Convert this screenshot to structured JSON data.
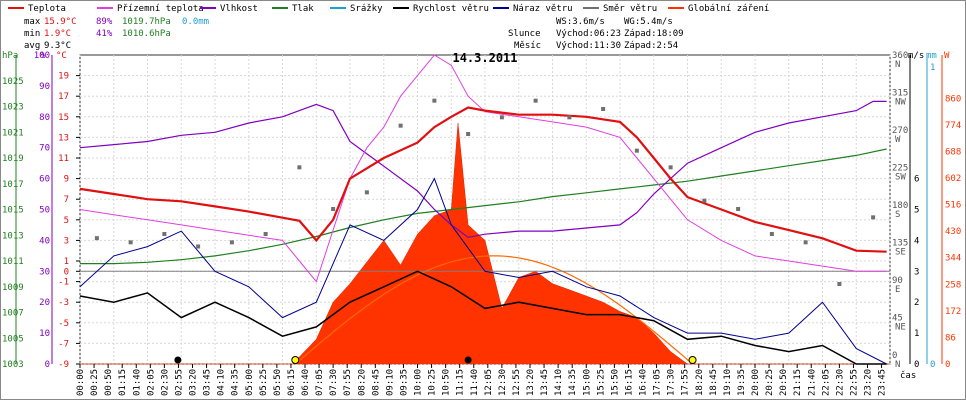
{
  "legend": [
    {
      "label": "Teplota",
      "color": "#e01010"
    },
    {
      "label": "Přízemní teplota",
      "color": "#e040e0"
    },
    {
      "label": "Vlhkost",
      "color": "#8000c0"
    },
    {
      "label": "Tlak",
      "color": "#208020"
    },
    {
      "label": "Srážky",
      "color": "#20a0d0"
    },
    {
      "label": "Rychlost větru",
      "color": "#000000"
    },
    {
      "label": "Náraz větru",
      "color": "#000090"
    },
    {
      "label": "Směr větru",
      "color": "#707070"
    },
    {
      "label": "Globální záření",
      "color": "#ff3300"
    }
  ],
  "stats": {
    "max_label": "max",
    "min_label": "min",
    "avg_label": "avg",
    "max_temp": "15.9°C",
    "max_hum": "89%",
    "max_press": "1019.7hPa",
    "max_rain": "0.0mm",
    "min_temp": "1.9°C",
    "min_hum": "41%",
    "min_press": "1010.6hPa",
    "avg_temp": "9.3°C",
    "ws": "WS:3.6m/s",
    "wg": "WG:5.4m/s",
    "sun_label": "Slunce",
    "sun_rise": "Východ:06:23",
    "sun_set": "Západ:18:09",
    "moon_label": "Měsíc",
    "moon_rise": "Východ:11:30",
    "moon_set": "Západ:2:54"
  },
  "date": "14.3.2011",
  "axis_units": {
    "hpa": "hPa",
    "pct": "%",
    "degc": "°C",
    "ms": "m/s",
    "mm": "mm",
    "w": "W",
    "cas": "čas"
  },
  "chart_data": {
    "type": "line",
    "title": "14.3.2011",
    "x_ticks": [
      "00:00",
      "00:25",
      "00:50",
      "01:15",
      "01:40",
      "02:05",
      "02:30",
      "02:55",
      "03:20",
      "03:45",
      "04:10",
      "04:35",
      "05:00",
      "05:25",
      "05:50",
      "06:15",
      "06:40",
      "07:05",
      "07:30",
      "07:55",
      "08:20",
      "08:45",
      "09:10",
      "09:35",
      "10:00",
      "10:25",
      "10:50",
      "11:15",
      "11:40",
      "12:05",
      "12:30",
      "12:55",
      "13:20",
      "13:45",
      "14:10",
      "14:35",
      "15:00",
      "15:25",
      "15:50",
      "16:15",
      "16:40",
      "17:05",
      "17:30",
      "17:55",
      "18:20",
      "18:45",
      "19:10",
      "19:35",
      "20:00",
      "20:25",
      "20:50",
      "21:15",
      "21:40",
      "22:05",
      "22:30",
      "22:55",
      "23:20",
      "23:45"
    ],
    "axes": {
      "pressure_hpa": {
        "range": [
          1003,
          1027
        ],
        "ticks": [
          "1003",
          "1005",
          "1007",
          "1009",
          "1011",
          "1013",
          "1015",
          "1017",
          "1019",
          "1021",
          "1023",
          "1025"
        ]
      },
      "humidity_pct": {
        "range": [
          0,
          100
        ],
        "ticks": [
          "0",
          "10",
          "20",
          "30",
          "40",
          "50",
          "60",
          "70",
          "80",
          "90",
          "100"
        ]
      },
      "temperature_c": {
        "range": [
          -9,
          21
        ],
        "ticks": [
          "-9",
          "-7",
          "-5",
          "-3",
          "-1",
          "0",
          "1",
          "3",
          "5",
          "7",
          "9",
          "11",
          "13",
          "15",
          "17",
          "19"
        ]
      },
      "wind_ms": {
        "range": [
          0,
          10
        ],
        "ticks": [
          "0",
          "1",
          "2",
          "3",
          "4",
          "5",
          "6"
        ]
      },
      "wind_dir_deg": {
        "ticks": [
          {
            "v": "0",
            "d": "N"
          },
          {
            "v": "45",
            "d": "NE"
          },
          {
            "v": "90",
            "d": "E"
          },
          {
            "v": "135",
            "d": "SE"
          },
          {
            "v": "180",
            "d": "S"
          },
          {
            "v": "225",
            "d": "SW"
          },
          {
            "v": "270",
            "d": "W"
          },
          {
            "v": "315",
            "d": "NW"
          },
          {
            "v": "360",
            "d": "N"
          }
        ]
      },
      "rain_mm": {
        "ticks": [
          "0",
          "1"
        ]
      },
      "radiation_w": {
        "range": [
          0,
          1000
        ],
        "ticks": [
          "0",
          "86",
          "172",
          "258",
          "344",
          "430",
          "516",
          "602",
          "688",
          "774",
          "860"
        ]
      }
    },
    "series": [
      {
        "name": "Teplota",
        "unit": "°C",
        "x": [
          0,
          1,
          2,
          3,
          4,
          5,
          6,
          6.5,
          7,
          7.5,
          8,
          8.5,
          9,
          10,
          10.5,
          11,
          11.5,
          12,
          13,
          14,
          15,
          16,
          16.5,
          17,
          17.5,
          18,
          19,
          20,
          21,
          22,
          22.5,
          23,
          23.9
        ],
        "values": [
          8,
          7.5,
          7,
          6.8,
          6.3,
          5.8,
          5.2,
          4.9,
          3,
          5,
          9,
          10,
          11,
          12.5,
          14,
          15,
          15.9,
          15.6,
          15.2,
          15.2,
          15,
          14.5,
          13,
          11,
          9,
          7.2,
          6,
          4.8,
          4,
          3.2,
          2.6,
          2,
          1.9
        ]
      },
      {
        "name": "Přízemní teplota",
        "unit": "°C",
        "x": [
          0,
          1,
          2,
          3,
          4,
          5,
          6,
          6.5,
          7,
          7.5,
          8,
          8.5,
          9,
          9.5,
          10,
          10.5,
          11,
          11.5,
          12,
          13,
          14,
          15,
          16,
          16.5,
          17,
          17.5,
          18,
          19,
          20,
          21,
          22,
          23,
          23.9
        ],
        "values": [
          6,
          5.5,
          5,
          4.5,
          4,
          3.5,
          3,
          1,
          -1,
          4,
          9,
          12,
          14,
          17,
          19,
          21,
          20,
          17,
          15.5,
          15,
          14.5,
          14,
          13,
          11,
          9,
          7,
          5,
          3,
          1.5,
          1,
          0.5,
          0,
          0
        ]
      },
      {
        "name": "Vlhkost",
        "unit": "%",
        "x": [
          0,
          1,
          2,
          3,
          4,
          5,
          6,
          6.5,
          7,
          7.5,
          8,
          8.5,
          9,
          10,
          10.5,
          11,
          11.5,
          12,
          13,
          14,
          15,
          16,
          16.5,
          17,
          17.5,
          18,
          19,
          20,
          21,
          22,
          23,
          23.5,
          23.9
        ],
        "values": [
          70,
          71,
          72,
          74,
          75,
          78,
          80,
          82,
          84,
          82,
          72,
          68,
          64,
          56,
          50,
          45,
          41,
          42,
          43,
          43,
          44,
          45,
          49,
          55,
          60,
          65,
          70,
          75,
          78,
          80,
          82,
          85,
          85
        ]
      },
      {
        "name": "Tlak",
        "unit": "hPa",
        "x": [
          0,
          1,
          2,
          3,
          4,
          5,
          6,
          7,
          8,
          9,
          10,
          11,
          12,
          13,
          14,
          15,
          16,
          17,
          18,
          19,
          20,
          21,
          22,
          23,
          23.9
        ],
        "values": [
          1010.8,
          1010.8,
          1010.9,
          1011.1,
          1011.4,
          1011.8,
          1012.3,
          1012.9,
          1013.6,
          1014.2,
          1014.7,
          1015.0,
          1015.3,
          1015.6,
          1016.0,
          1016.3,
          1016.6,
          1016.9,
          1017.2,
          1017.6,
          1018.0,
          1018.4,
          1018.8,
          1019.2,
          1019.7
        ]
      },
      {
        "name": "Rychlost větru",
        "unit": "m/s",
        "x": [
          0,
          1,
          2,
          3,
          4,
          5,
          6,
          7,
          8,
          9,
          10,
          11,
          12,
          13,
          14,
          15,
          16,
          17,
          18,
          19,
          20,
          21,
          22,
          23,
          23.9
        ],
        "values": [
          2.2,
          2.0,
          2.3,
          1.5,
          2.0,
          1.5,
          0.9,
          1.2,
          2.0,
          2.5,
          3.0,
          2.5,
          1.8,
          2.0,
          1.8,
          1.6,
          1.6,
          1.4,
          0.8,
          0.9,
          0.6,
          0.4,
          0.6,
          0,
          0
        ]
      },
      {
        "name": "Náraz větru",
        "unit": "m/s",
        "x": [
          0,
          1,
          2,
          3,
          4,
          5,
          6,
          7,
          8,
          9,
          10,
          10.5,
          11,
          12,
          13,
          14,
          15,
          16,
          17,
          18,
          19,
          20,
          21,
          22,
          23,
          23.9
        ],
        "values": [
          2.5,
          3.5,
          3.8,
          4.3,
          3.0,
          2.5,
          1.5,
          2.0,
          4.5,
          4.0,
          5.0,
          6.0,
          4.5,
          3.0,
          2.8,
          3.0,
          2.5,
          2.2,
          1.5,
          1.0,
          1.0,
          0.8,
          1.0,
          2.0,
          0.5,
          0
        ]
      },
      {
        "name": "Směr větru",
        "unit": "°",
        "x": [
          0.5,
          1.5,
          2.5,
          3.5,
          4.5,
          5.5,
          6.5,
          7.5,
          8.5,
          9.5,
          10.5,
          11.5,
          12.5,
          13.5,
          14.5,
          15.5,
          16.5,
          17.5,
          18.5,
          19.5,
          20.5,
          21.5,
          22.5,
          23.5
        ],
        "values": [
          145,
          140,
          150,
          135,
          140,
          150,
          230,
          180,
          200,
          280,
          310,
          270,
          290,
          310,
          290,
          300,
          250,
          230,
          190,
          180,
          150,
          140,
          90,
          170
        ]
      },
      {
        "name": "Globální záření",
        "unit": "W",
        "x": [
          0,
          6.3,
          7,
          7.5,
          8,
          8.5,
          9,
          9.5,
          10,
          10.5,
          11,
          11.2,
          11.5,
          12,
          12.5,
          13,
          13.5,
          14,
          14.5,
          15,
          15.5,
          16,
          16.5,
          17,
          17.5,
          18,
          24
        ],
        "values": [
          0,
          0,
          80,
          200,
          260,
          330,
          400,
          320,
          420,
          480,
          500,
          780,
          450,
          400,
          180,
          280,
          300,
          260,
          240,
          220,
          200,
          170,
          150,
          100,
          40,
          0,
          0
        ]
      }
    ],
    "grid": true
  }
}
